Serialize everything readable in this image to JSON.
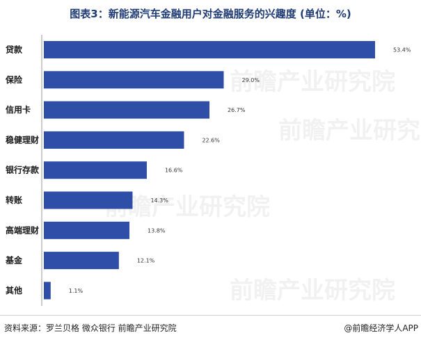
{
  "chart_data": {
    "type": "bar",
    "orientation": "horizontal",
    "title": "图表3：新能源汽车金融用户对金融服务的兴趣度 (单位：%)",
    "categories": [
      "贷款",
      "保险",
      "信用卡",
      "稳健理财",
      "银行存款",
      "转账",
      "高端理财",
      "基金",
      "其他"
    ],
    "values": [
      53.4,
      29.0,
      26.7,
      22.6,
      16.6,
      14.3,
      13.8,
      12.1,
      1.1
    ],
    "value_labels": [
      "53.4%",
      "29.0%",
      "26.7%",
      "22.6%",
      "16.6%",
      "14.3%",
      "13.8%",
      "12.1%",
      "1.1%"
    ],
    "xlim": [
      0,
      53.4
    ],
    "grid": false,
    "legend": "none",
    "bar_color": "#2e4ea8"
  },
  "footer": {
    "source": "资料来源：罗兰贝格 微众银行 前瞻产业研究院",
    "credit": "@前瞻经济学人APP"
  },
  "watermark": "前瞻产业研究院"
}
